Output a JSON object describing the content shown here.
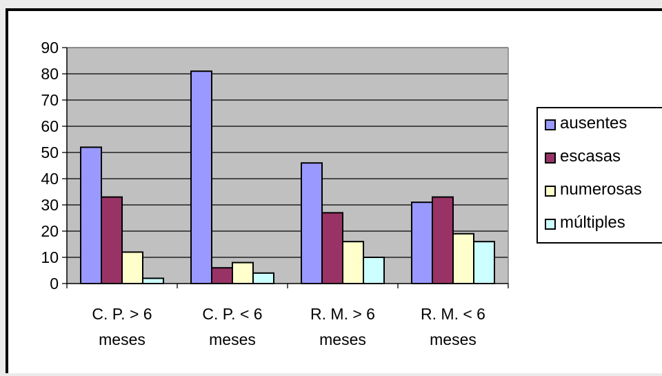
{
  "chart_data": {
    "type": "bar",
    "categories": [
      [
        "C. P. > 6",
        "meses"
      ],
      [
        "C. P. < 6",
        "meses"
      ],
      [
        "R. M. > 6",
        "meses"
      ],
      [
        "R. M. < 6",
        "meses"
      ]
    ],
    "series": [
      {
        "name": "ausentes",
        "values": [
          52,
          81,
          46,
          31
        ],
        "color": "#9999ff"
      },
      {
        "name": "escasas",
        "values": [
          33,
          6,
          27,
          33
        ],
        "color": "#993366"
      },
      {
        "name": "numerosas",
        "values": [
          12,
          8,
          16,
          19
        ],
        "color": "#ffffcc"
      },
      {
        "name": "múltiples",
        "values": [
          2,
          4,
          10,
          16
        ],
        "color": "#ccffff"
      }
    ],
    "ylim": [
      0,
      90
    ],
    "yticks": [
      0,
      10,
      20,
      30,
      40,
      50,
      60,
      70,
      80,
      90
    ],
    "grid": true,
    "plot_background": "#c0c0c0",
    "legend_position": "right"
  }
}
